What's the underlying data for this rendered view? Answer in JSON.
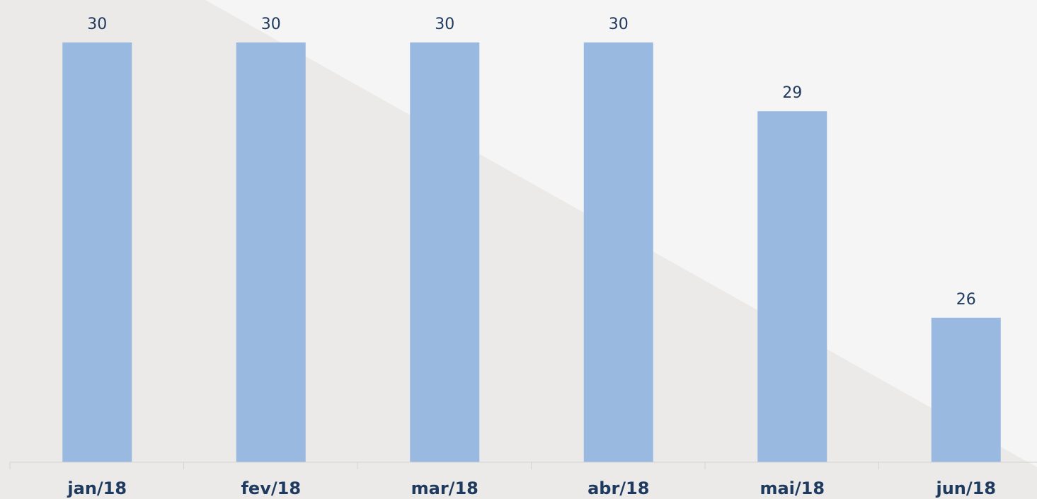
{
  "chart_data": {
    "type": "bar",
    "title": "",
    "xlabel": "",
    "ylabel": "",
    "categories": [
      "jan/18",
      "fev/18",
      "mar/18",
      "abr/18",
      "mai/18",
      "jun/18"
    ],
    "values": [
      30,
      30,
      30,
      30,
      29,
      26
    ],
    "value_labels": [
      "30",
      "30",
      "30",
      "30",
      "29",
      "26"
    ],
    "ylim": [
      23.9,
      30
    ],
    "grid": false,
    "legend": "none",
    "colors": {
      "bar": "#99b9e0",
      "label": "#1f3a5f",
      "background": "#f5f5f5",
      "background_shade": "#ebeae8",
      "axis": "#d4d4d4"
    }
  }
}
